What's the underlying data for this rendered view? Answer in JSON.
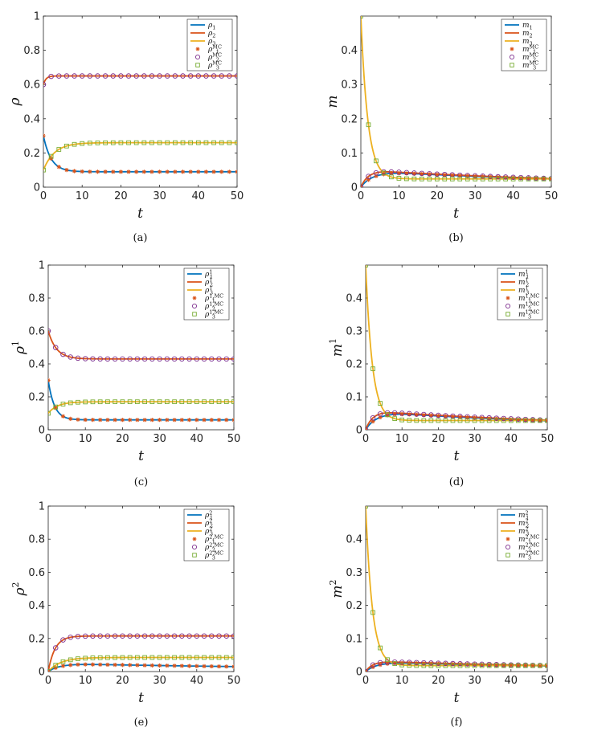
{
  "colors": {
    "blue": "#0072BD",
    "orange": "#D95319",
    "yellow": "#EDB120",
    "purple": "#7E2F8E",
    "green": "#77AC30"
  },
  "chart_data": [
    {
      "id": "a",
      "type": "line",
      "caption": "(a)",
      "xlabel": "t",
      "ylabel": "ρ",
      "ylabel_sup": "",
      "xlim": [
        0,
        50
      ],
      "ylim": [
        0,
        1
      ],
      "xticks": [
        0,
        10,
        20,
        30,
        40,
        50
      ],
      "yticks": [
        0,
        0.2,
        0.4,
        0.6,
        0.8,
        1
      ],
      "ytick_labels": [
        "0",
        "0.2",
        "0.4",
        "0.6",
        "0.8",
        "1"
      ],
      "legend_position": "top-right",
      "legend": [
        {
          "base": "ρ",
          "sub": "1",
          "sup": ""
        },
        {
          "base": "ρ",
          "sub": "2",
          "sup": ""
        },
        {
          "base": "ρ",
          "sub": "3",
          "sup": ""
        },
        {
          "base": "ρ",
          "sub": "1",
          "sup": "MC"
        },
        {
          "base": "ρ",
          "sub": "2",
          "sup": "MC"
        },
        {
          "base": "ρ",
          "sub": "3",
          "sup": "MC"
        }
      ],
      "series": [
        {
          "initial": 0.3,
          "final": 0.09,
          "rate": 0.5,
          "color": "blue",
          "marker": "star",
          "marker_color": "orange"
        },
        {
          "initial": 0.6,
          "final": 0.65,
          "rate": 1.5,
          "color": "orange",
          "marker": "circle",
          "marker_color": "purple"
        },
        {
          "initial": 0.1,
          "final": 0.26,
          "rate": 0.35,
          "color": "yellow",
          "marker": "square",
          "marker_color": "green"
        }
      ]
    },
    {
      "id": "b",
      "type": "line",
      "caption": "(b)",
      "xlabel": "t",
      "ylabel": "m",
      "ylabel_sup": "",
      "xlim": [
        0,
        50
      ],
      "ylim": [
        0,
        0.5
      ],
      "xticks": [
        0,
        10,
        20,
        30,
        40,
        50
      ],
      "yticks": [
        0,
        0.1,
        0.2,
        0.3,
        0.4
      ],
      "ytick_labels": [
        "0",
        "0.1",
        "0.2",
        "0.3",
        "0.4"
      ],
      "legend_position": "top-right",
      "legend": [
        {
          "base": "m",
          "sub": "1",
          "sup": ""
        },
        {
          "base": "m",
          "sub": "2",
          "sup": ""
        },
        {
          "base": "m",
          "sub": "3",
          "sup": ""
        },
        {
          "base": "m",
          "sub": "1",
          "sup": "MC"
        },
        {
          "base": "m",
          "sub": "2",
          "sup": "MC"
        },
        {
          "base": "m",
          "sub": "3",
          "sup": "MC"
        }
      ],
      "series": [
        {
          "initial": 0.0,
          "peak": 0.043,
          "final": 0.024,
          "color": "blue",
          "marker": "star",
          "marker_color": "orange",
          "kind": "hump"
        },
        {
          "initial": 0.0,
          "peak": 0.047,
          "final": 0.025,
          "color": "orange",
          "marker": "circle",
          "marker_color": "purple",
          "kind": "hump_fast"
        },
        {
          "initial": 0.5,
          "final": 0.024,
          "color": "yellow",
          "marker": "square",
          "marker_color": "green",
          "kind": "decay"
        }
      ]
    },
    {
      "id": "c",
      "type": "line",
      "caption": "(c)",
      "xlabel": "t",
      "ylabel": "ρ",
      "ylabel_sup": "1",
      "xlim": [
        0,
        50
      ],
      "ylim": [
        0,
        1
      ],
      "xticks": [
        0,
        10,
        20,
        30,
        40,
        50
      ],
      "yticks": [
        0,
        0.2,
        0.4,
        0.6,
        0.8,
        1
      ],
      "ytick_labels": [
        "0",
        "0.2",
        "0.4",
        "0.6",
        "0.8",
        "1"
      ],
      "legend_position": "top-right",
      "legend": [
        {
          "base": "ρ",
          "sub": "1",
          "sup": "1"
        },
        {
          "base": "ρ",
          "sub": "2",
          "sup": "1"
        },
        {
          "base": "ρ",
          "sub": "3",
          "sup": "1"
        },
        {
          "base": "ρ",
          "sub": "1",
          "sup": "1,MC"
        },
        {
          "base": "ρ",
          "sub": "2",
          "sup": "1,MC"
        },
        {
          "base": "ρ",
          "sub": "3",
          "sup": "1,MC"
        }
      ],
      "series": [
        {
          "initial": 0.3,
          "final": 0.06,
          "rate": 0.6,
          "color": "blue",
          "marker": "star",
          "marker_color": "orange"
        },
        {
          "initial": 0.6,
          "final": 0.43,
          "rate": 0.45,
          "color": "orange",
          "marker": "circle",
          "marker_color": "purple"
        },
        {
          "initial": 0.1,
          "final": 0.17,
          "rate": 0.4,
          "color": "yellow",
          "marker": "square",
          "marker_color": "green"
        }
      ]
    },
    {
      "id": "d",
      "type": "line",
      "caption": "(d)",
      "xlabel": "t",
      "ylabel": "m",
      "ylabel_sup": "1",
      "xlim": [
        0,
        50
      ],
      "ylim": [
        0,
        0.5
      ],
      "xticks": [
        0,
        10,
        20,
        30,
        40,
        50
      ],
      "yticks": [
        0,
        0.1,
        0.2,
        0.3,
        0.4
      ],
      "ytick_labels": [
        "0",
        "0.1",
        "0.2",
        "0.3",
        "0.4"
      ],
      "legend_position": "top-right",
      "legend": [
        {
          "base": "m",
          "sub": "1",
          "sup": "1"
        },
        {
          "base": "m",
          "sub": "2",
          "sup": "1"
        },
        {
          "base": "m",
          "sub": "3",
          "sup": "1"
        },
        {
          "base": "m",
          "sub": "1",
          "sup": "1,MC"
        },
        {
          "base": "m",
          "sub": "2",
          "sup": "1,MC"
        },
        {
          "base": "m",
          "sub": "3",
          "sup": "1,MC"
        }
      ],
      "series": [
        {
          "initial": 0.0,
          "peak": 0.05,
          "final": 0.027,
          "color": "blue",
          "marker": "star",
          "marker_color": "orange",
          "kind": "hump"
        },
        {
          "initial": 0.0,
          "peak": 0.054,
          "final": 0.029,
          "color": "orange",
          "marker": "circle",
          "marker_color": "purple",
          "kind": "hump_fast"
        },
        {
          "initial": 0.5,
          "final": 0.028,
          "color": "yellow",
          "marker": "square",
          "marker_color": "green",
          "kind": "decay"
        }
      ]
    },
    {
      "id": "e",
      "type": "line",
      "caption": "(e)",
      "xlabel": "t",
      "ylabel": "ρ",
      "ylabel_sup": "2",
      "xlim": [
        0,
        50
      ],
      "ylim": [
        0,
        1
      ],
      "xticks": [
        0,
        10,
        20,
        30,
        40,
        50
      ],
      "yticks": [
        0,
        0.2,
        0.4,
        0.6,
        0.8,
        1
      ],
      "ytick_labels": [
        "0",
        "0.2",
        "0.4",
        "0.6",
        "0.8",
        "1"
      ],
      "legend_position": "top-right",
      "legend": [
        {
          "base": "ρ",
          "sub": "1",
          "sup": "2"
        },
        {
          "base": "ρ",
          "sub": "2",
          "sup": "2"
        },
        {
          "base": "ρ",
          "sub": "3",
          "sup": "2"
        },
        {
          "base": "ρ",
          "sub": "1",
          "sup": "2,MC"
        },
        {
          "base": "ρ",
          "sub": "2",
          "sup": "2,MC"
        },
        {
          "base": "ρ",
          "sub": "3",
          "sup": "2,MC"
        }
      ],
      "series": [
        {
          "initial": 0.0,
          "peak": 0.045,
          "final": 0.03,
          "color": "blue",
          "marker": "star",
          "marker_color": "orange",
          "kind": "hump"
        },
        {
          "initial": 0.0,
          "final": 0.215,
          "rate": 0.55,
          "color": "orange",
          "marker": "circle",
          "marker_color": "purple",
          "kind": "rise"
        },
        {
          "initial": 0.0,
          "final": 0.085,
          "rate": 0.3,
          "color": "yellow",
          "marker": "square",
          "marker_color": "green",
          "kind": "rise"
        }
      ]
    },
    {
      "id": "f",
      "type": "line",
      "caption": "(f)",
      "xlabel": "t",
      "ylabel": "m",
      "ylabel_sup": "2",
      "xlim": [
        0,
        50
      ],
      "ylim": [
        0,
        0.5
      ],
      "xticks": [
        0,
        10,
        20,
        30,
        40,
        50
      ],
      "yticks": [
        0,
        0.1,
        0.2,
        0.3,
        0.4
      ],
      "ytick_labels": [
        "0",
        "0.1",
        "0.2",
        "0.3",
        "0.4"
      ],
      "legend_position": "top-right",
      "legend": [
        {
          "base": "m",
          "sub": "1",
          "sup": "2"
        },
        {
          "base": "m",
          "sub": "2",
          "sup": "2"
        },
        {
          "base": "m",
          "sub": "3",
          "sup": "2"
        },
        {
          "base": "m",
          "sub": "1",
          "sup": "2,MC"
        },
        {
          "base": "m",
          "sub": "2",
          "sup": "2,MC"
        },
        {
          "base": "m",
          "sub": "3",
          "sup": "2,MC"
        }
      ],
      "series": [
        {
          "initial": 0.0,
          "peak": 0.027,
          "final": 0.017,
          "color": "blue",
          "marker": "star",
          "marker_color": "orange",
          "kind": "hump"
        },
        {
          "initial": 0.0,
          "peak": 0.03,
          "final": 0.018,
          "color": "orange",
          "marker": "circle",
          "marker_color": "purple",
          "kind": "hump_fast"
        },
        {
          "initial": 0.5,
          "final": 0.018,
          "color": "yellow",
          "marker": "square",
          "marker_color": "green",
          "kind": "decay"
        }
      ]
    }
  ]
}
